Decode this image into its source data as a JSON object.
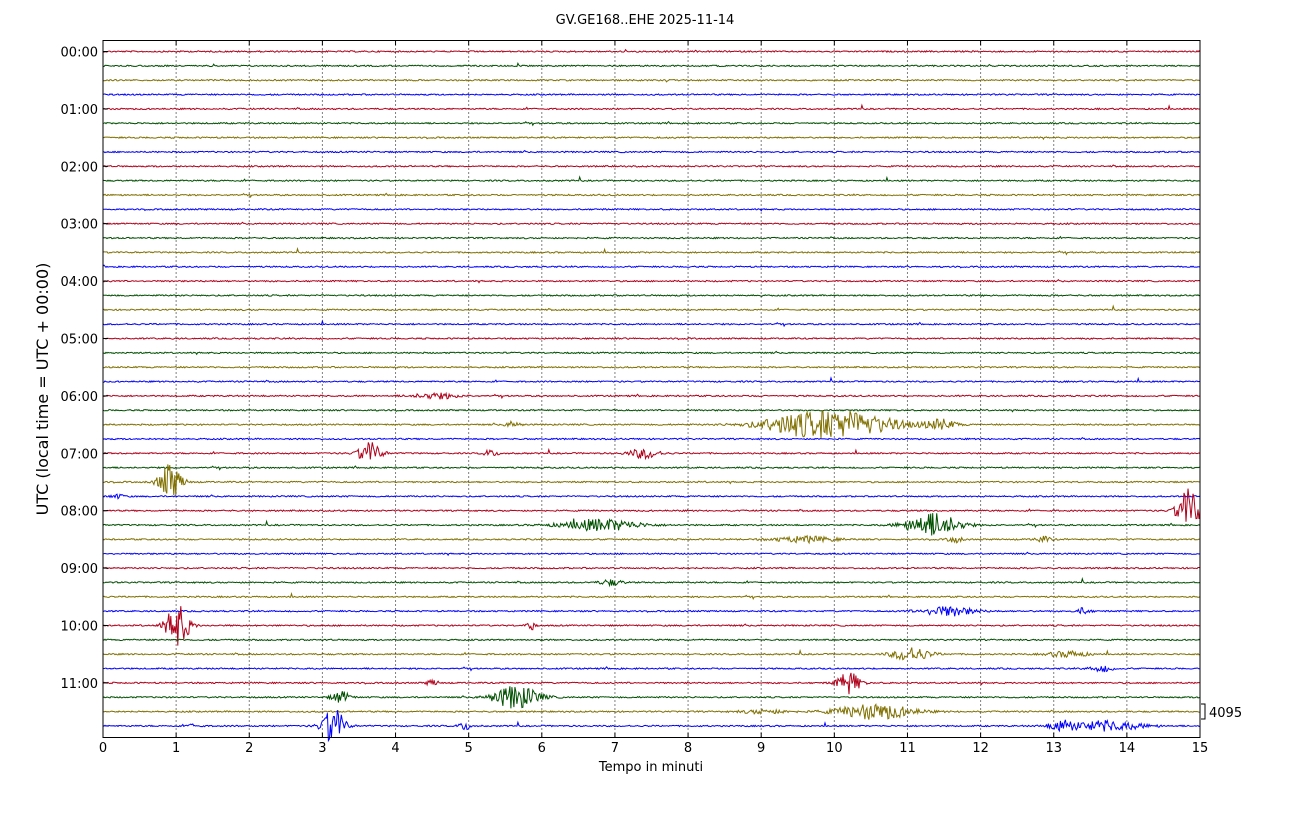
{
  "chart_data": {
    "type": "line",
    "title": "GV.GE168..EHE 2025-11-14",
    "xlabel": "Tempo in minuti",
    "ylabel": "UTC (local time = UTC + 00:00)",
    "xlim": [
      0,
      15
    ],
    "x_ticks": [
      "0",
      "1",
      "2",
      "3",
      "4",
      "5",
      "6",
      "7",
      "8",
      "9",
      "10",
      "11",
      "12",
      "13",
      "14",
      "15"
    ],
    "y_ticks": [
      "00:00",
      "01:00",
      "02:00",
      "03:00",
      "04:00",
      "05:00",
      "06:00",
      "07:00",
      "08:00",
      "09:00",
      "10:00",
      "11:00"
    ],
    "grid": "vertical dotted",
    "trace_interval_minutes": 15,
    "trace_colors": [
      "#b0001a",
      "#005000",
      "#807000",
      "#0000ff"
    ],
    "scale_label": "4095",
    "events": [
      {
        "trace": 24,
        "x": 4.55,
        "amp": 3,
        "width": 0.3
      },
      {
        "trace": 26,
        "x": 10.0,
        "amp": 14,
        "width": 0.8
      },
      {
        "trace": 26,
        "x": 11.45,
        "amp": 5,
        "width": 0.2
      },
      {
        "trace": 26,
        "x": 9.3,
        "amp": 3,
        "width": 0.3
      },
      {
        "trace": 26,
        "x": 5.6,
        "amp": 3,
        "width": 0.1
      },
      {
        "trace": 28,
        "x": 3.65,
        "amp": 11,
        "width": 0.15
      },
      {
        "trace": 28,
        "x": 7.4,
        "amp": 5,
        "width": 0.2
      },
      {
        "trace": 28,
        "x": 5.3,
        "amp": 3,
        "width": 0.1
      },
      {
        "trace": 30,
        "x": 0.92,
        "amp": 18,
        "width": 0.15
      },
      {
        "trace": 31,
        "x": 0.2,
        "amp": 2,
        "width": 0.1
      },
      {
        "trace": 32,
        "x": 14.85,
        "amp": 22,
        "width": 0.15
      },
      {
        "trace": 33,
        "x": 6.8,
        "amp": 6,
        "width": 0.5
      },
      {
        "trace": 33,
        "x": 11.35,
        "amp": 12,
        "width": 0.35
      },
      {
        "trace": 34,
        "x": 9.6,
        "amp": 3,
        "width": 0.4
      },
      {
        "trace": 34,
        "x": 11.65,
        "amp": 3,
        "width": 0.1
      },
      {
        "trace": 34,
        "x": 12.85,
        "amp": 3,
        "width": 0.1
      },
      {
        "trace": 37,
        "x": 6.95,
        "amp": 3,
        "width": 0.15
      },
      {
        "trace": 39,
        "x": 11.55,
        "amp": 5,
        "width": 0.35
      },
      {
        "trace": 39,
        "x": 13.4,
        "amp": 3,
        "width": 0.1
      },
      {
        "trace": 40,
        "x": 1.02,
        "amp": 22,
        "width": 0.15
      },
      {
        "trace": 40,
        "x": 5.85,
        "amp": 6,
        "width": 0.05
      },
      {
        "trace": 42,
        "x": 11.05,
        "amp": 7,
        "width": 0.25
      },
      {
        "trace": 42,
        "x": 13.2,
        "amp": 3,
        "width": 0.25
      },
      {
        "trace": 43,
        "x": 13.65,
        "amp": 3,
        "width": 0.15
      },
      {
        "trace": 44,
        "x": 10.2,
        "amp": 11,
        "width": 0.15
      },
      {
        "trace": 44,
        "x": 4.5,
        "amp": 3,
        "width": 0.08
      },
      {
        "trace": 45,
        "x": 5.65,
        "amp": 12,
        "width": 0.3
      },
      {
        "trace": 45,
        "x": 3.25,
        "amp": 6,
        "width": 0.12
      },
      {
        "trace": 46,
        "x": 10.55,
        "amp": 8,
        "width": 0.5
      },
      {
        "trace": 46,
        "x": 9.05,
        "amp": 2,
        "width": 0.3
      },
      {
        "trace": 47,
        "x": 3.15,
        "amp": 18,
        "width": 0.15
      },
      {
        "trace": 47,
        "x": 4.95,
        "amp": 4,
        "width": 0.08
      },
      {
        "trace": 47,
        "x": 13.1,
        "amp": 5,
        "width": 0.15
      },
      {
        "trace": 47,
        "x": 13.7,
        "amp": 5,
        "width": 0.5
      },
      {
        "trace": 47,
        "x": 1.25,
        "amp": 2,
        "width": 0.08
      }
    ]
  }
}
